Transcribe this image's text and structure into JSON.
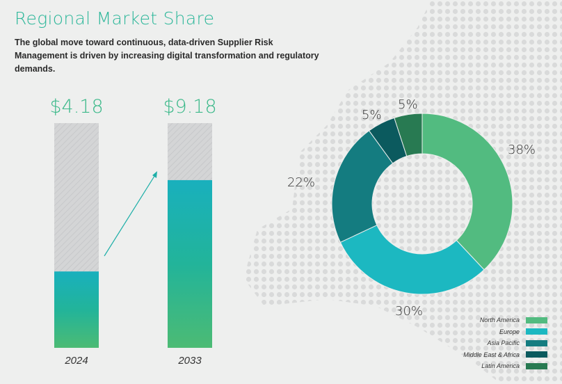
{
  "title": "Regional Market Share",
  "subtitle": "The global move toward continuous, data-driven Supplier Risk Management is driven by increasing digital transformation and regulatory demands.",
  "chart_data": [
    {
      "type": "bar",
      "categories": [
        "2024",
        "2033"
      ],
      "values": [
        4.18,
        9.18
      ],
      "value_labels": [
        "$4.18",
        "$9.18"
      ],
      "ylim": [
        0,
        12.3
      ]
    },
    {
      "type": "pie",
      "donut": true,
      "labels": [
        "North America",
        "Europe",
        "Asia Pacific",
        "Middle East & Africa",
        "Latin America"
      ],
      "values": [
        38,
        30,
        22,
        5,
        5
      ],
      "value_labels": [
        "38%",
        "30%",
        "22%",
        "5%",
        "5%"
      ],
      "colors": [
        "#52bb80",
        "#1cb8c1",
        "#147c80",
        "#0b5a5e",
        "#287a52"
      ],
      "legend": "bottom-right"
    }
  ]
}
